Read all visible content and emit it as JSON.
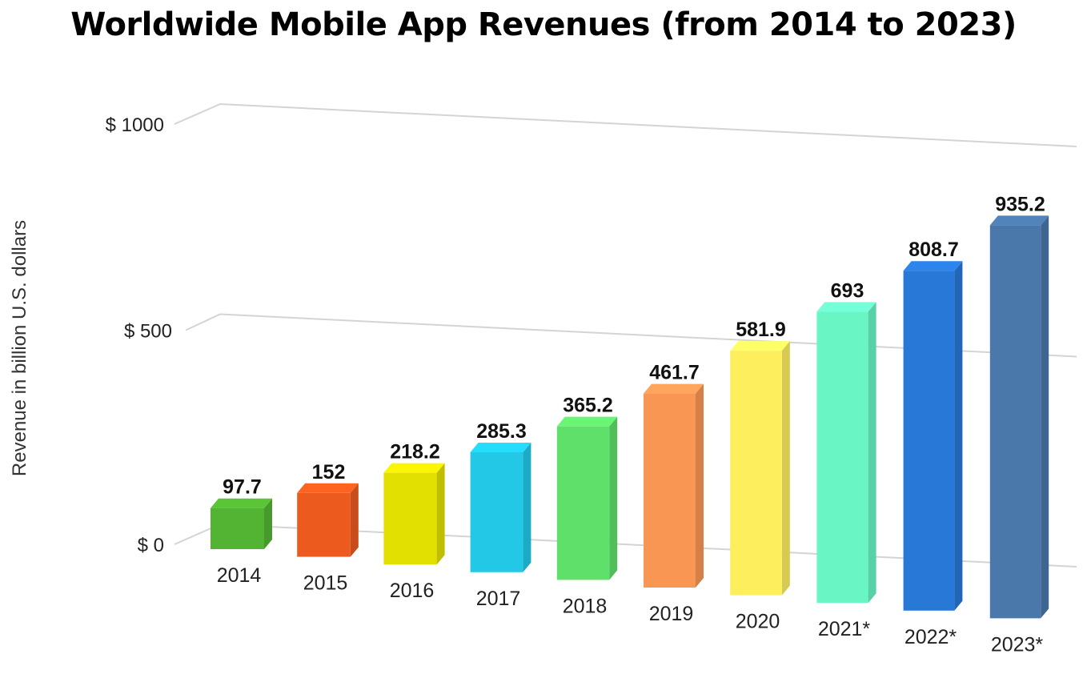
{
  "chart_data": {
    "type": "bar",
    "title": "Worldwide Mobile App Revenues (from 2014 to 2023)",
    "xlabel": "",
    "ylabel": "Revenue in billion U.S. dollars",
    "ylim": [
      0,
      1000
    ],
    "yticks": [
      {
        "value": 0,
        "label": "$ 0"
      },
      {
        "value": 500,
        "label": "$ 500"
      },
      {
        "value": 1000,
        "label": "$ 1000"
      }
    ],
    "grid": true,
    "style": "3d-perspective",
    "categories": [
      "2014",
      "2015",
      "2016",
      "2017",
      "2018",
      "2019",
      "2020",
      "2021*",
      "2022*",
      "2023*"
    ],
    "values": [
      97.7,
      152,
      218.2,
      285.3,
      365.2,
      461.7,
      581.9,
      693,
      808.7,
      935.2
    ],
    "value_labels": [
      "97.7",
      "152",
      "218.2",
      "285.3",
      "365.2",
      "461.7",
      "581.9",
      "693",
      "808.7",
      "935.2"
    ],
    "colors": [
      "#52b432",
      "#ec5a1e",
      "#e2e000",
      "#22c8e6",
      "#5fe06a",
      "#fa9654",
      "#fdee5e",
      "#69f5c4",
      "#2878d8",
      "#4a78aa"
    ]
  }
}
